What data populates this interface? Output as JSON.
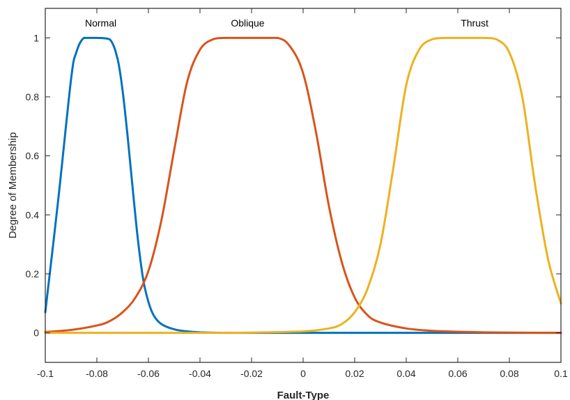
{
  "chart_data": {
    "type": "line",
    "title": "",
    "xlabel": "Fault-Type",
    "ylabel": "Degree of Membership",
    "xlim": [
      -0.1,
      0.1
    ],
    "ylim": [
      -0.1,
      1.1
    ],
    "grid": false,
    "legend": "none",
    "x_ticks": [
      {
        "value": -0.1,
        "label": "-0.1"
      },
      {
        "value": -0.08,
        "label": "-0.08"
      },
      {
        "value": -0.06,
        "label": "-0.06"
      },
      {
        "value": -0.04,
        "label": "-0.04"
      },
      {
        "value": -0.02,
        "label": "-0.02"
      },
      {
        "value": 0,
        "label": "0"
      },
      {
        "value": 0.02,
        "label": "0.02"
      },
      {
        "value": 0.04,
        "label": "0.04"
      },
      {
        "value": 0.06,
        "label": "0.06"
      },
      {
        "value": 0.08,
        "label": "0.08"
      },
      {
        "value": 0.1,
        "label": "0.1"
      }
    ],
    "y_ticks": [
      {
        "value": 0,
        "label": "0"
      },
      {
        "value": 0.2,
        "label": "0.2"
      },
      {
        "value": 0.4,
        "label": "0.4"
      },
      {
        "value": 0.6,
        "label": "0.6"
      },
      {
        "value": 0.8,
        "label": "0.8"
      },
      {
        "value": 1,
        "label": "1"
      }
    ],
    "series": [
      {
        "name": "Normal",
        "color": "#0072BD",
        "label_x": -0.0785,
        "label_y": 1.05,
        "x": [
          -0.1,
          -0.095,
          -0.09,
          -0.088,
          -0.085,
          -0.08,
          -0.075,
          -0.072,
          -0.07,
          -0.068,
          -0.066,
          -0.064,
          -0.062,
          -0.06,
          -0.058,
          -0.055,
          -0.05,
          -0.045,
          -0.04,
          -0.03,
          0,
          0.05,
          0.1
        ],
        "values": [
          0.07,
          0.45,
          0.86,
          0.95,
          1.0,
          1.0,
          0.995,
          0.93,
          0.82,
          0.66,
          0.48,
          0.31,
          0.18,
          0.105,
          0.06,
          0.03,
          0.012,
          0.005,
          0.002,
          0.0,
          0.0,
          0.0,
          0.0
        ]
      },
      {
        "name": "Oblique",
        "color": "#D95319",
        "label_x": -0.0215,
        "label_y": 1.05,
        "x": [
          -0.1,
          -0.09,
          -0.08,
          -0.075,
          -0.07,
          -0.065,
          -0.06,
          -0.055,
          -0.05,
          -0.045,
          -0.04,
          -0.035,
          -0.03,
          -0.02,
          -0.01,
          -0.005,
          0,
          0.005,
          0.01,
          0.015,
          0.02,
          0.025,
          0.03,
          0.04,
          0.05,
          0.06,
          0.07,
          0.08,
          0.1
        ],
        "values": [
          0.003,
          0.01,
          0.025,
          0.04,
          0.07,
          0.12,
          0.21,
          0.38,
          0.62,
          0.85,
          0.96,
          0.995,
          1.0,
          1.0,
          1.0,
          0.97,
          0.88,
          0.68,
          0.43,
          0.24,
          0.12,
          0.06,
          0.035,
          0.015,
          0.007,
          0.004,
          0.002,
          0.001,
          0.0
        ]
      },
      {
        "name": "Thrust",
        "color": "#EDB120",
        "label_x": 0.0665,
        "label_y": 1.05,
        "x": [
          -0.1,
          -0.04,
          -0.02,
          0,
          0.01,
          0.015,
          0.02,
          0.025,
          0.03,
          0.035,
          0.04,
          0.045,
          0.05,
          0.055,
          0.06,
          0.07,
          0.075,
          0.08,
          0.085,
          0.09,
          0.095,
          0.1
        ],
        "values": [
          0.0,
          0.0,
          0.001,
          0.005,
          0.015,
          0.03,
          0.07,
          0.15,
          0.3,
          0.56,
          0.84,
          0.96,
          0.995,
          1.0,
          1.0,
          1.0,
          0.995,
          0.95,
          0.8,
          0.5,
          0.25,
          0.1
        ]
      }
    ]
  }
}
